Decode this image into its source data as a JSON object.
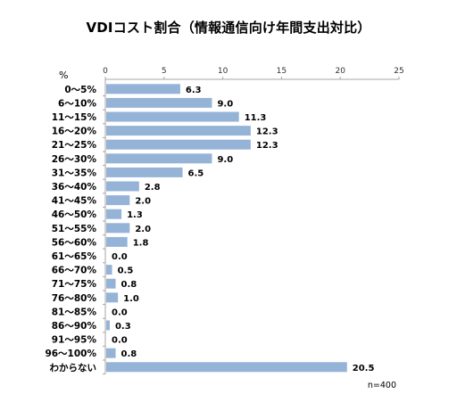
{
  "chart_data": {
    "type": "bar",
    "orientation": "horizontal",
    "title": "VDIコスト割合（情報通信向け年間支出対比）",
    "category_axis_label": "%",
    "categories": [
      "0～5%",
      "6～10%",
      "11～15%",
      "16～20%",
      "21～25%",
      "26～30%",
      "31～35%",
      "36～40%",
      "41～45%",
      "46～50%",
      "51～55%",
      "56～60%",
      "61～65%",
      "66～70%",
      "71～75%",
      "76～80%",
      "81～85%",
      "86～90%",
      "91～95%",
      "96～100%",
      "わからない"
    ],
    "values": [
      6.3,
      9.0,
      11.3,
      12.3,
      12.3,
      9.0,
      6.5,
      2.8,
      2.0,
      1.3,
      2.0,
      1.8,
      0.0,
      0.5,
      0.8,
      1.0,
      0.0,
      0.3,
      0.0,
      0.8,
      20.5
    ],
    "value_labels": [
      "6.3",
      "9.0",
      "11.3",
      "12.3",
      "12.3",
      "9.0",
      "6.5",
      "2.8",
      "2.0",
      "1.3",
      "2.0",
      "1.8",
      "0.0",
      "0.5",
      "0.8",
      "1.0",
      "0.0",
      "0.3",
      "0.0",
      "0.8",
      "20.5"
    ],
    "xlim": [
      0,
      25
    ],
    "xticks": [
      0,
      5,
      10,
      15,
      20,
      25
    ],
    "xtick_position": "top",
    "grid": false,
    "legend": "none",
    "bar_color": "#95b3d7",
    "note": "n=400"
  }
}
